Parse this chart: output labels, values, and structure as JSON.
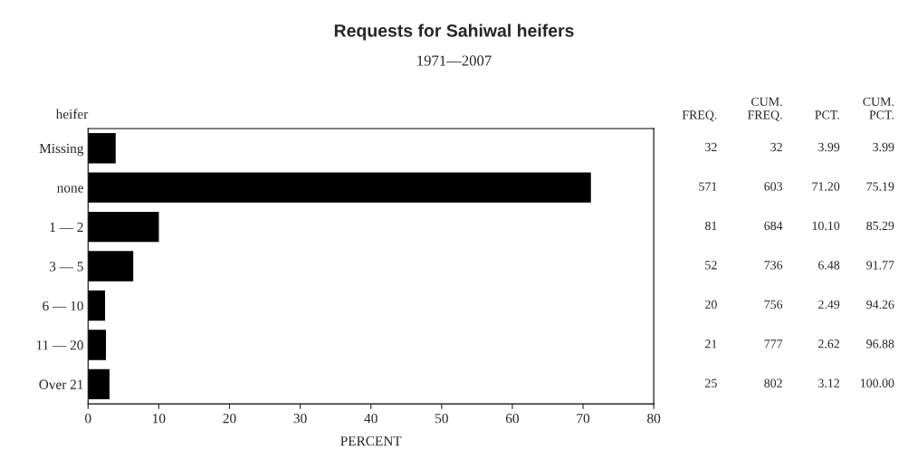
{
  "chart_data": {
    "type": "bar",
    "orientation": "horizontal",
    "title": "Requests for Sahiwal heifers",
    "subtitle": "1971—2007",
    "ylabel": "heifer",
    "xlabel": "PERCENT",
    "categories": [
      "Missing",
      "none",
      "1 — 2",
      "3 — 5",
      "6 — 10",
      "11 — 20",
      "Over 21"
    ],
    "series": [
      {
        "color": "#000000",
        "values": [
          3.99,
          71.2,
          10.1,
          6.48,
          2.49,
          2.62,
          3.12
        ],
        "value_labels": [
          "3.99",
          "71.20",
          "10.10",
          "6.48",
          "2.49",
          "2.62",
          "3.12"
        ]
      }
    ],
    "xlim": [
      0,
      80
    ],
    "xticks": [
      0,
      10,
      20,
      30,
      40,
      50,
      60,
      70,
      80
    ],
    "grid": false,
    "legend": false,
    "annotations": [
      "FREQ.",
      "CUM.\nFREQ.",
      "PCT.",
      "CUM.\nPCT.",
      "32",
      "32",
      "3.99",
      "571",
      "603",
      "75.19",
      "81",
      "684",
      "85.29",
      "52",
      "736",
      "91.77",
      "20",
      "756",
      "94.26",
      "21",
      "777",
      "96.88",
      "25",
      "802",
      "100.00"
    ]
  }
}
